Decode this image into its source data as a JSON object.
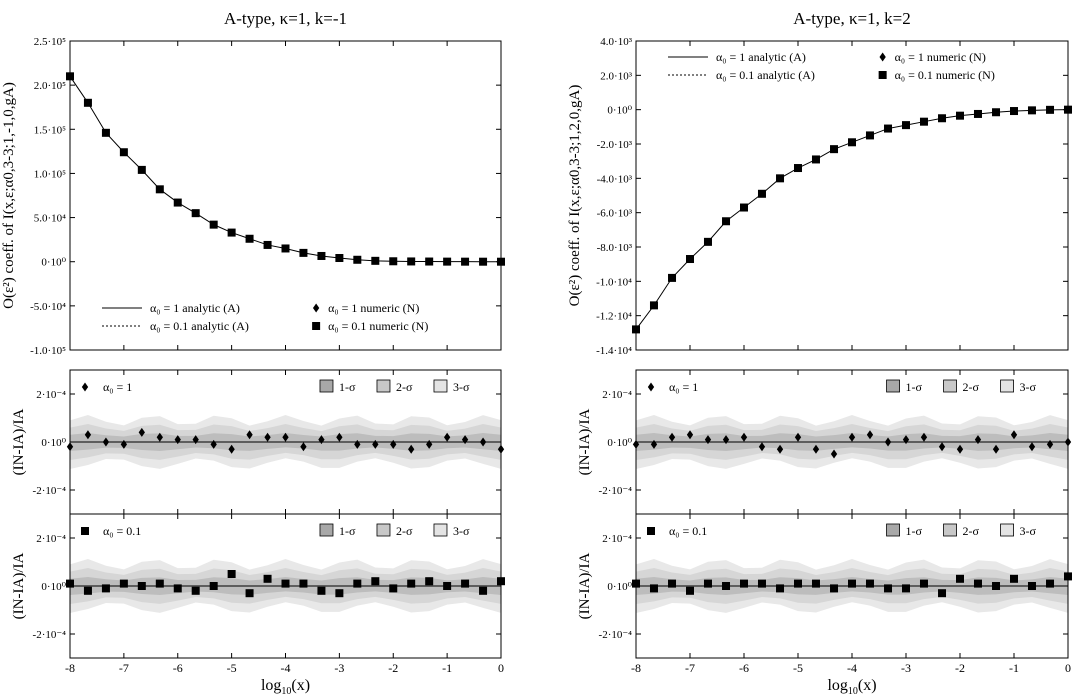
{
  "figure": {
    "xlabel_html": "log<tspan font-size='10' dy='4'>10</tspan><tspan dy='-4'>(x)</tspan>",
    "xlabel": "log10(x)"
  },
  "chart_data": [
    {
      "type": "line",
      "panel": "left-main",
      "title": "A-type, κ=1, k=-1",
      "ylabel": "O(ε²) coeff. of I(x,ε;α0,3-3;1,-1,0,gA)",
      "xlim": [
        -8,
        0
      ],
      "ylim": [
        -100000,
        250000
      ],
      "yticks": [
        -100000,
        -50000,
        0,
        50000,
        100000,
        150000,
        200000,
        250000
      ],
      "ytick_labels": [
        "-1.0·10⁵",
        "-5.0·10⁴",
        "0·10⁰",
        "5.0·10⁴",
        "1.0·10⁵",
        "1.5·10⁵",
        "2.0·10⁵",
        "2.5·10⁵"
      ],
      "xticks": [
        -8,
        -7,
        -6,
        -5,
        -4,
        -3,
        -2,
        -1,
        0
      ],
      "legend": {
        "placement": "bottom",
        "entries": [
          "α₀ = 1 analytic (A)",
          "α₀ = 0.1 analytic (A)",
          "α₀ = 1 numeric (N)",
          "α₀ = 0.1 numeric (N)"
        ]
      },
      "x": [
        -8,
        -7.667,
        -7.333,
        -7,
        -6.667,
        -6.333,
        -6,
        -5.667,
        -5.333,
        -5,
        -4.667,
        -4.333,
        -4,
        -3.667,
        -3.333,
        -3,
        -2.667,
        -2.333,
        -2,
        -1.667,
        -1.333,
        -1,
        -0.667,
        -0.333,
        0
      ],
      "series": [
        {
          "name": "α₀ = 0.1 numeric (N)",
          "marker": "square",
          "values": [
            210000,
            180000,
            146000,
            124000,
            104000,
            82000,
            67000,
            55000,
            42000,
            33000,
            26000,
            19000,
            15000,
            10000,
            6500,
            4200,
            2200,
            1000,
            500,
            300,
            200,
            100,
            50,
            20,
            0
          ]
        },
        {
          "name": "α₀ = 1 analytic (A)",
          "style": "solid",
          "values": [
            210000,
            180000,
            146000,
            124000,
            104000,
            82000,
            67000,
            55000,
            42000,
            33000,
            26000,
            19000,
            15000,
            10000,
            6500,
            4200,
            2200,
            1000,
            500,
            300,
            200,
            100,
            50,
            20,
            0
          ]
        }
      ]
    },
    {
      "type": "line",
      "panel": "right-main",
      "title": "A-type, κ=1, k=2",
      "ylabel": "O(ε²) coeff. of I(x,ε;α0,3-3;1,2,0,gA)",
      "xlim": [
        -8,
        0
      ],
      "ylim": [
        -14000,
        4000
      ],
      "yticks": [
        -14000,
        -12000,
        -10000,
        -8000,
        -6000,
        -4000,
        -2000,
        0,
        2000,
        4000
      ],
      "ytick_labels": [
        "-1.4·10⁴",
        "-1.2·10⁴",
        "-1.0·10⁴",
        "-8.0·10³",
        "-6.0·10³",
        "-4.0·10³",
        "-2.0·10³",
        "0·10⁰",
        "2.0·10³",
        "4.0·10³"
      ],
      "xticks": [
        -8,
        -7,
        -6,
        -5,
        -4,
        -3,
        -2,
        -1,
        0
      ],
      "legend": {
        "placement": "top",
        "entries": [
          "α₀ = 1 analytic (A)",
          "α₀ = 0.1 analytic (A)",
          "α₀ = 1 numeric (N)",
          "α₀ = 0.1 numeric (N)"
        ]
      },
      "x": [
        -8,
        -7.667,
        -7.333,
        -7,
        -6.667,
        -6.333,
        -6,
        -5.667,
        -5.333,
        -5,
        -4.667,
        -4.333,
        -4,
        -3.667,
        -3.333,
        -3,
        -2.667,
        -2.333,
        -2,
        -1.667,
        -1.333,
        -1,
        -0.667,
        -0.333,
        0
      ],
      "series": [
        {
          "name": "α₀ = 0.1 numeric (N)",
          "marker": "square",
          "values": [
            -12800,
            -11400,
            -9800,
            -8700,
            -7700,
            -6500,
            -5700,
            -4900,
            -4000,
            -3400,
            -2900,
            -2300,
            -1900,
            -1500,
            -1100,
            -900,
            -700,
            -500,
            -350,
            -250,
            -150,
            -80,
            -40,
            -10,
            0
          ]
        },
        {
          "name": "α₀ = 1 analytic (A)",
          "style": "solid",
          "values": [
            -12800,
            -11400,
            -9800,
            -8700,
            -7700,
            -6500,
            -5700,
            -4900,
            -4000,
            -3400,
            -2900,
            -2300,
            -1900,
            -1500,
            -1100,
            -900,
            -700,
            -500,
            -350,
            -250,
            -150,
            -80,
            -40,
            -10,
            0
          ]
        }
      ]
    },
    {
      "type": "scatter",
      "panel": "left-res1",
      "ylabel": "(IN-IA)/IA",
      "xlim": [
        -8,
        0
      ],
      "ylim": [
        -0.0003,
        0.0003
      ],
      "yticks": [
        -0.0002,
        0,
        0.0002
      ],
      "ytick_labels": [
        "-2·10⁻⁴",
        "0·10⁰",
        "2·10⁻⁴"
      ],
      "xticks": [
        -8,
        -7,
        -6,
        -5,
        -4,
        -3,
        -2,
        -1,
        0
      ],
      "legend": {
        "placement": "top",
        "entries": [
          "α₀ = 1",
          "1-σ",
          "2-σ",
          "3-σ"
        ]
      },
      "x": [
        -8,
        -7.667,
        -7.333,
        -7,
        -6.667,
        -6.333,
        -6,
        -5.667,
        -5.333,
        -5,
        -4.667,
        -4.333,
        -4,
        -3.667,
        -3.333,
        -3,
        -2.667,
        -2.333,
        -2,
        -1.667,
        -1.333,
        -1,
        -0.667,
        -0.333,
        0
      ],
      "bands": {
        "sigma1": [
          3e-05,
          3e-05,
          3e-05,
          3e-05,
          3e-05,
          3e-05,
          3e-05,
          3e-05,
          3e-05,
          3e-05,
          4e-05,
          4e-05,
          4e-05,
          3e-05,
          3e-05,
          3e-05,
          3e-05,
          3e-05,
          3e-05,
          3e-05,
          3e-05,
          3e-05,
          3e-05,
          3e-05,
          3e-05
        ]
      },
      "series": [
        {
          "name": "α₀ = 1",
          "marker": "diamond",
          "values": [
            -2e-05,
            3e-05,
            0.0,
            -1e-05,
            4e-05,
            2e-05,
            1e-05,
            1e-05,
            -1e-05,
            -3e-05,
            3e-05,
            2e-05,
            2e-05,
            -2e-05,
            1e-05,
            2e-05,
            -1e-05,
            -1e-05,
            -1e-05,
            -3e-05,
            -1e-05,
            2e-05,
            1e-05,
            0.0,
            -3e-05
          ]
        }
      ]
    },
    {
      "type": "scatter",
      "panel": "left-res2",
      "ylabel": "(IN-IA)/IA",
      "xlim": [
        -8,
        0
      ],
      "ylim": [
        -0.0003,
        0.0003
      ],
      "yticks": [
        -0.0002,
        0,
        0.0002
      ],
      "ytick_labels": [
        "-2·10⁻⁴",
        "0·10⁰",
        "2·10⁻⁴"
      ],
      "xticks": [
        -8,
        -7,
        -6,
        -5,
        -4,
        -3,
        -2,
        -1,
        0
      ],
      "legend": {
        "placement": "top",
        "entries": [
          "α₀ = 0.1",
          "1-σ",
          "2-σ",
          "3-σ"
        ]
      },
      "x": [
        -8,
        -7.667,
        -7.333,
        -7,
        -6.667,
        -6.333,
        -6,
        -5.667,
        -5.333,
        -5,
        -4.667,
        -4.333,
        -4,
        -3.667,
        -3.333,
        -3,
        -2.667,
        -2.333,
        -2,
        -1.667,
        -1.333,
        -1,
        -0.667,
        -0.333,
        0
      ],
      "series": [
        {
          "name": "α₀ = 0.1",
          "marker": "square",
          "values": [
            1e-05,
            -2e-05,
            -1e-05,
            1e-05,
            0.0,
            1e-05,
            -1e-05,
            -2e-05,
            0.0,
            5e-05,
            -3e-05,
            3e-05,
            1e-05,
            1e-05,
            -2e-05,
            -3e-05,
            1e-05,
            2e-05,
            -1e-05,
            1e-05,
            2e-05,
            0.0,
            1e-05,
            -2e-05,
            2e-05
          ]
        }
      ]
    },
    {
      "type": "scatter",
      "panel": "right-res1",
      "ylabel": "(IN-IA)/IA",
      "xlim": [
        -8,
        0
      ],
      "ylim": [
        -0.0003,
        0.0003
      ],
      "yticks": [
        -0.0002,
        0,
        0.0002
      ],
      "ytick_labels": [
        "-2·10⁻⁴",
        "0·10⁰",
        "2·10⁻⁴"
      ],
      "xticks": [
        -8,
        -7,
        -6,
        -5,
        -4,
        -3,
        -2,
        -1,
        0
      ],
      "legend": {
        "placement": "top",
        "entries": [
          "α₀ = 1",
          "1-σ",
          "2-σ",
          "3-σ"
        ]
      },
      "x": [
        -8,
        -7.667,
        -7.333,
        -7,
        -6.667,
        -6.333,
        -6,
        -5.667,
        -5.333,
        -5,
        -4.667,
        -4.333,
        -4,
        -3.667,
        -3.333,
        -3,
        -2.667,
        -2.333,
        -2,
        -1.667,
        -1.333,
        -1,
        -0.667,
        -0.333,
        0
      ],
      "series": [
        {
          "name": "α₀ = 1",
          "marker": "diamond",
          "values": [
            -1e-05,
            -1e-05,
            2e-05,
            3e-05,
            1e-05,
            1e-05,
            2e-05,
            -2e-05,
            -3e-05,
            2e-05,
            -3e-05,
            -5e-05,
            2e-05,
            3e-05,
            0.0,
            1e-05,
            2e-05,
            -2e-05,
            -3e-05,
            1e-05,
            -3e-05,
            3e-05,
            -2e-05,
            -1e-05,
            0.0
          ]
        }
      ]
    },
    {
      "type": "scatter",
      "panel": "right-res2",
      "ylabel": "(IN-IA)/IA",
      "xlim": [
        -8,
        0
      ],
      "ylim": [
        -0.0003,
        0.0003
      ],
      "yticks": [
        -0.0002,
        0,
        0.0002
      ],
      "ytick_labels": [
        "-2·10⁻⁴",
        "0·10⁰",
        "2·10⁻⁴"
      ],
      "xticks": [
        -8,
        -7,
        -6,
        -5,
        -4,
        -3,
        -2,
        -1,
        0
      ],
      "legend": {
        "placement": "top",
        "entries": [
          "α₀ = 0.1",
          "1-σ",
          "2-σ",
          "3-σ"
        ]
      },
      "x": [
        -8,
        -7.667,
        -7.333,
        -7,
        -6.667,
        -6.333,
        -6,
        -5.667,
        -5.333,
        -5,
        -4.667,
        -4.333,
        -4,
        -3.667,
        -3.333,
        -3,
        -2.667,
        -2.333,
        -2,
        -1.667,
        -1.333,
        -1,
        -0.667,
        -0.333,
        0
      ],
      "series": [
        {
          "name": "α₀ = 0.1",
          "marker": "square",
          "values": [
            1e-05,
            -1e-05,
            1e-05,
            -2e-05,
            1e-05,
            0.0,
            1e-05,
            1e-05,
            -1e-05,
            1e-05,
            1e-05,
            -1e-05,
            1e-05,
            1e-05,
            -1e-05,
            -1e-05,
            1e-05,
            -3e-05,
            3e-05,
            1e-05,
            0.0,
            3e-05,
            0.0,
            1e-05,
            4e-05
          ]
        }
      ]
    }
  ]
}
